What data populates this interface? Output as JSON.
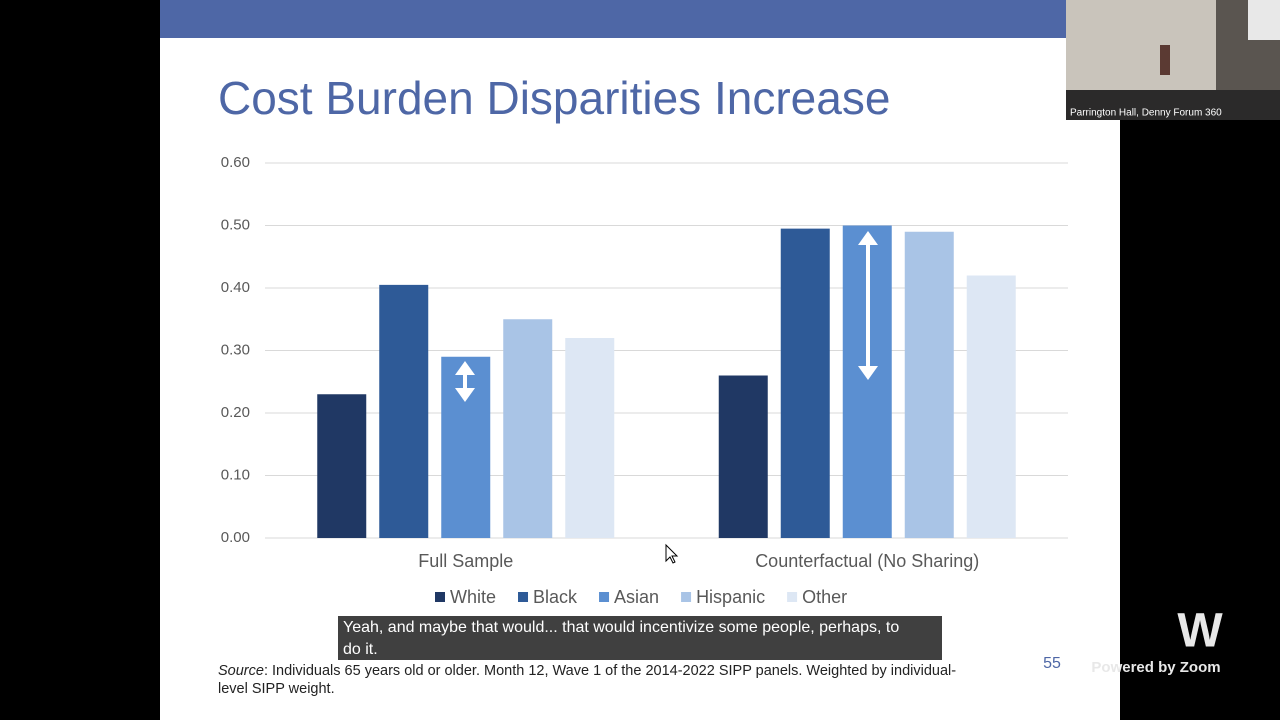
{
  "chart_data": {
    "type": "bar",
    "title": "Cost Burden Disparities Increase",
    "categories": [
      "Full Sample",
      "Counterfactual (No Sharing)"
    ],
    "series": [
      {
        "name": "White",
        "color": "#203864",
        "values": [
          0.23,
          0.26
        ]
      },
      {
        "name": "Black",
        "color": "#2e5a97",
        "values": [
          0.405,
          0.495
        ]
      },
      {
        "name": "Asian",
        "color": "#5b8fd1",
        "values": [
          0.29,
          0.5
        ]
      },
      {
        "name": "Hispanic",
        "color": "#a9c4e6",
        "values": [
          0.35,
          0.49
        ]
      },
      {
        "name": "Other",
        "color": "#dde7f4",
        "values": [
          0.32,
          0.42
        ]
      }
    ],
    "ylim": [
      0,
      0.6
    ],
    "yticks": [
      {
        "value": 0,
        "label": "0.00"
      },
      {
        "value": 0.1,
        "label": "0.10"
      },
      {
        "value": 0.2,
        "label": "0.20"
      },
      {
        "value": 0.3,
        "label": "0.30"
      },
      {
        "value": 0.4,
        "label": "0.40"
      },
      {
        "value": 0.5,
        "label": "0.50"
      },
      {
        "value": 0.6,
        "label": "0.60"
      }
    ],
    "grid": true,
    "legend": "bottom"
  },
  "slide": {
    "source_label": "Source",
    "source_text": ": Individuals 65 years old or older. Month 12, Wave 1 of the 2014-2022 SIPP panels. Weighted by individual-",
    "source_text_2": "level SIPP weight.",
    "page_number": "55"
  },
  "caption": {
    "line1": "Yeah, and maybe that would... that would incentivize some people, perhaps, to",
    "line2": "do it."
  },
  "video": {
    "label": "Parrington Hall, Denny Forum 360"
  },
  "zoom": {
    "logo": "W",
    "powered": "Powered by Zoom"
  }
}
